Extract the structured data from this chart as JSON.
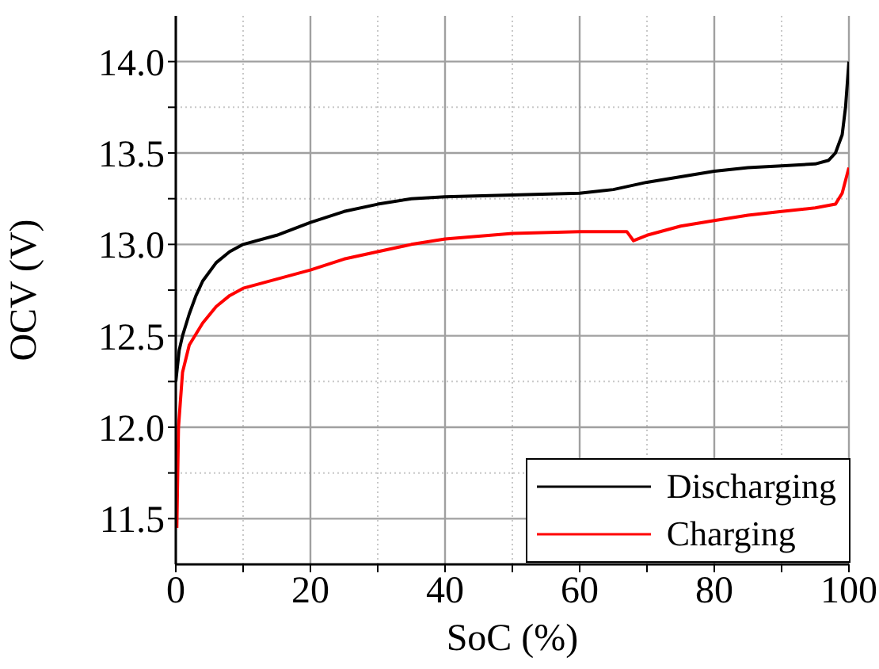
{
  "chart_data": {
    "type": "line",
    "xlabel": "SoC (%)",
    "ylabel": "OCV (V)",
    "xlim": [
      0,
      100
    ],
    "ylim": [
      11.25,
      14.25
    ],
    "xticks": [
      0,
      {
        "value": 10,
        "label": null
      },
      20,
      {
        "value": 30,
        "label": null
      },
      40,
      {
        "value": 50,
        "label": null
      },
      60,
      {
        "value": 70,
        "label": null
      },
      80,
      {
        "value": 90,
        "label": null
      },
      100
    ],
    "yticks": [
      {
        "value": 11.5,
        "label": "11.5"
      },
      {
        "value": 11.75,
        "label": null
      },
      {
        "value": 12,
        "label": "12.0"
      },
      {
        "value": 12.25,
        "label": null
      },
      {
        "value": 12.5,
        "label": "12.5"
      },
      {
        "value": 12.75,
        "label": null
      },
      {
        "value": 13,
        "label": "13.0"
      },
      {
        "value": 13.25,
        "label": null
      },
      {
        "value": 13.5,
        "label": "13.5"
      },
      {
        "value": 13.75,
        "label": null
      },
      {
        "value": 14,
        "label": "14.0"
      }
    ],
    "grid": true,
    "legend": "bottom right",
    "marker": "none",
    "line_style": "solid",
    "series": [
      {
        "name": "Discharging",
        "color": "#000000",
        "x": [
          0,
          0.5,
          1,
          2,
          3,
          4,
          6,
          8,
          10,
          15,
          20,
          25,
          30,
          35,
          40,
          50,
          60,
          65,
          70,
          75,
          80,
          85,
          90,
          95,
          97,
          98,
          99,
          99.5,
          100
        ],
        "values": [
          12.25,
          12.42,
          12.5,
          12.62,
          12.72,
          12.8,
          12.9,
          12.96,
          13.0,
          13.05,
          13.12,
          13.18,
          13.22,
          13.25,
          13.26,
          13.27,
          13.28,
          13.3,
          13.34,
          13.37,
          13.4,
          13.42,
          13.43,
          13.44,
          13.46,
          13.5,
          13.6,
          13.75,
          14.0
        ]
      },
      {
        "name": "Charging",
        "color": "#ff0000",
        "x": [
          0.15,
          0.4,
          1,
          2,
          4,
          6,
          8,
          10,
          15,
          20,
          25,
          30,
          35,
          40,
          50,
          60,
          67,
          68,
          70,
          75,
          80,
          85,
          90,
          95,
          98,
          99,
          100
        ],
        "values": [
          11.45,
          12.0,
          12.3,
          12.45,
          12.57,
          12.66,
          12.72,
          12.76,
          12.81,
          12.86,
          12.92,
          12.96,
          13.0,
          13.03,
          13.06,
          13.07,
          13.07,
          13.02,
          13.05,
          13.1,
          13.13,
          13.16,
          13.18,
          13.2,
          13.22,
          13.28,
          13.42
        ]
      }
    ]
  }
}
